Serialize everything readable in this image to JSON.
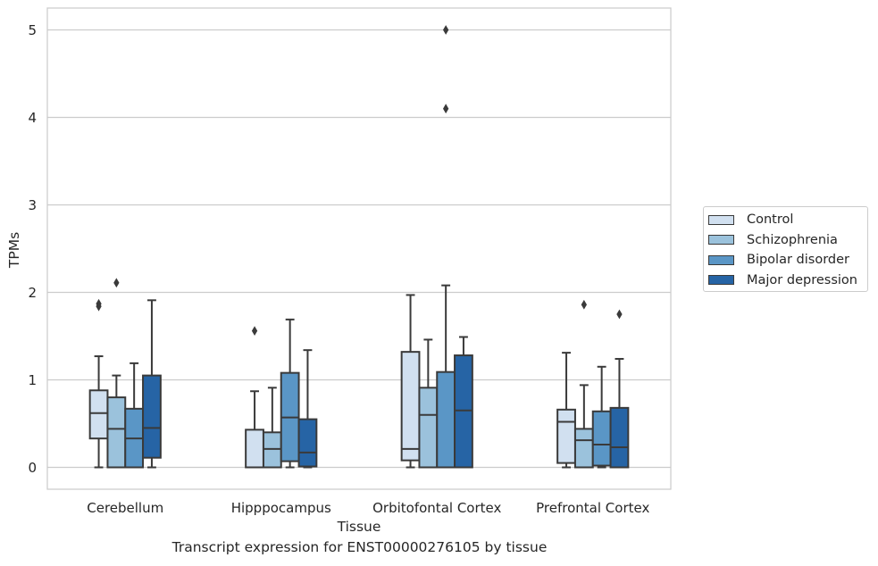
{
  "caption": "Transcript expression for ENST00000276105 by tissue",
  "chart_data": {
    "type": "box",
    "xlabel": "Tissue",
    "ylabel": "TPMs",
    "ylim": [
      -0.25,
      5.25
    ],
    "yticks": [
      0,
      1,
      2,
      3,
      4,
      5
    ],
    "grid": "horizontal",
    "legend_position": "right",
    "categories": [
      "Cerebellum",
      "Hipppocampus",
      "Orbitofontal Cortex",
      "Prefrontal Cortex"
    ],
    "series": [
      {
        "name": "Control",
        "color": "#d1e0f0",
        "boxes": [
          {
            "whisker_low": 0.0,
            "q1": 0.33,
            "median": 0.62,
            "q3": 0.88,
            "whisker_high": 1.27,
            "outliers": [
              1.84,
              1.87
            ]
          },
          {
            "whisker_low": 0.0,
            "q1": 0.0,
            "median": 0.0,
            "q3": 0.43,
            "whisker_high": 0.87,
            "outliers": [
              1.56
            ]
          },
          {
            "whisker_low": 0.0,
            "q1": 0.08,
            "median": 0.21,
            "q3": 1.32,
            "whisker_high": 1.97,
            "outliers": []
          },
          {
            "whisker_low": 0.0,
            "q1": 0.05,
            "median": 0.52,
            "q3": 0.66,
            "whisker_high": 1.31,
            "outliers": []
          }
        ]
      },
      {
        "name": "Schizophrenia",
        "color": "#9bc2dc",
        "boxes": [
          {
            "whisker_low": 0.0,
            "q1": 0.0,
            "median": 0.44,
            "q3": 0.8,
            "whisker_high": 1.05,
            "outliers": [
              2.11
            ]
          },
          {
            "whisker_low": 0.0,
            "q1": 0.0,
            "median": 0.21,
            "q3": 0.4,
            "whisker_high": 0.91,
            "outliers": []
          },
          {
            "whisker_low": 0.0,
            "q1": 0.0,
            "median": 0.6,
            "q3": 0.91,
            "whisker_high": 1.46,
            "outliers": []
          },
          {
            "whisker_low": 0.0,
            "q1": 0.0,
            "median": 0.31,
            "q3": 0.44,
            "whisker_high": 0.94,
            "outliers": [
              1.86
            ]
          }
        ]
      },
      {
        "name": "Bipolar disorder",
        "color": "#5a96c6",
        "boxes": [
          {
            "whisker_low": 0.0,
            "q1": 0.0,
            "median": 0.33,
            "q3": 0.67,
            "whisker_high": 1.19,
            "outliers": []
          },
          {
            "whisker_low": 0.0,
            "q1": 0.07,
            "median": 0.57,
            "q3": 1.08,
            "whisker_high": 1.69,
            "outliers": []
          },
          {
            "whisker_low": 0.0,
            "q1": 0.0,
            "median": 0.0,
            "q3": 1.09,
            "whisker_high": 2.08,
            "outliers": [
              4.1,
              5.0
            ]
          },
          {
            "whisker_low": 0.0,
            "q1": 0.02,
            "median": 0.26,
            "q3": 0.64,
            "whisker_high": 1.15,
            "outliers": []
          }
        ]
      },
      {
        "name": "Major depression",
        "color": "#2664a5",
        "boxes": [
          {
            "whisker_low": 0.0,
            "q1": 0.11,
            "median": 0.45,
            "q3": 1.05,
            "whisker_high": 1.91,
            "outliers": []
          },
          {
            "whisker_low": 0.0,
            "q1": 0.01,
            "median": 0.17,
            "q3": 0.55,
            "whisker_high": 1.34,
            "outliers": []
          },
          {
            "whisker_low": 0.0,
            "q1": 0.0,
            "median": 0.65,
            "q3": 1.28,
            "whisker_high": 1.49,
            "outliers": []
          },
          {
            "whisker_low": 0.0,
            "q1": 0.0,
            "median": 0.23,
            "q3": 0.68,
            "whisker_high": 1.24,
            "outliers": [
              1.75
            ]
          }
        ]
      }
    ]
  }
}
